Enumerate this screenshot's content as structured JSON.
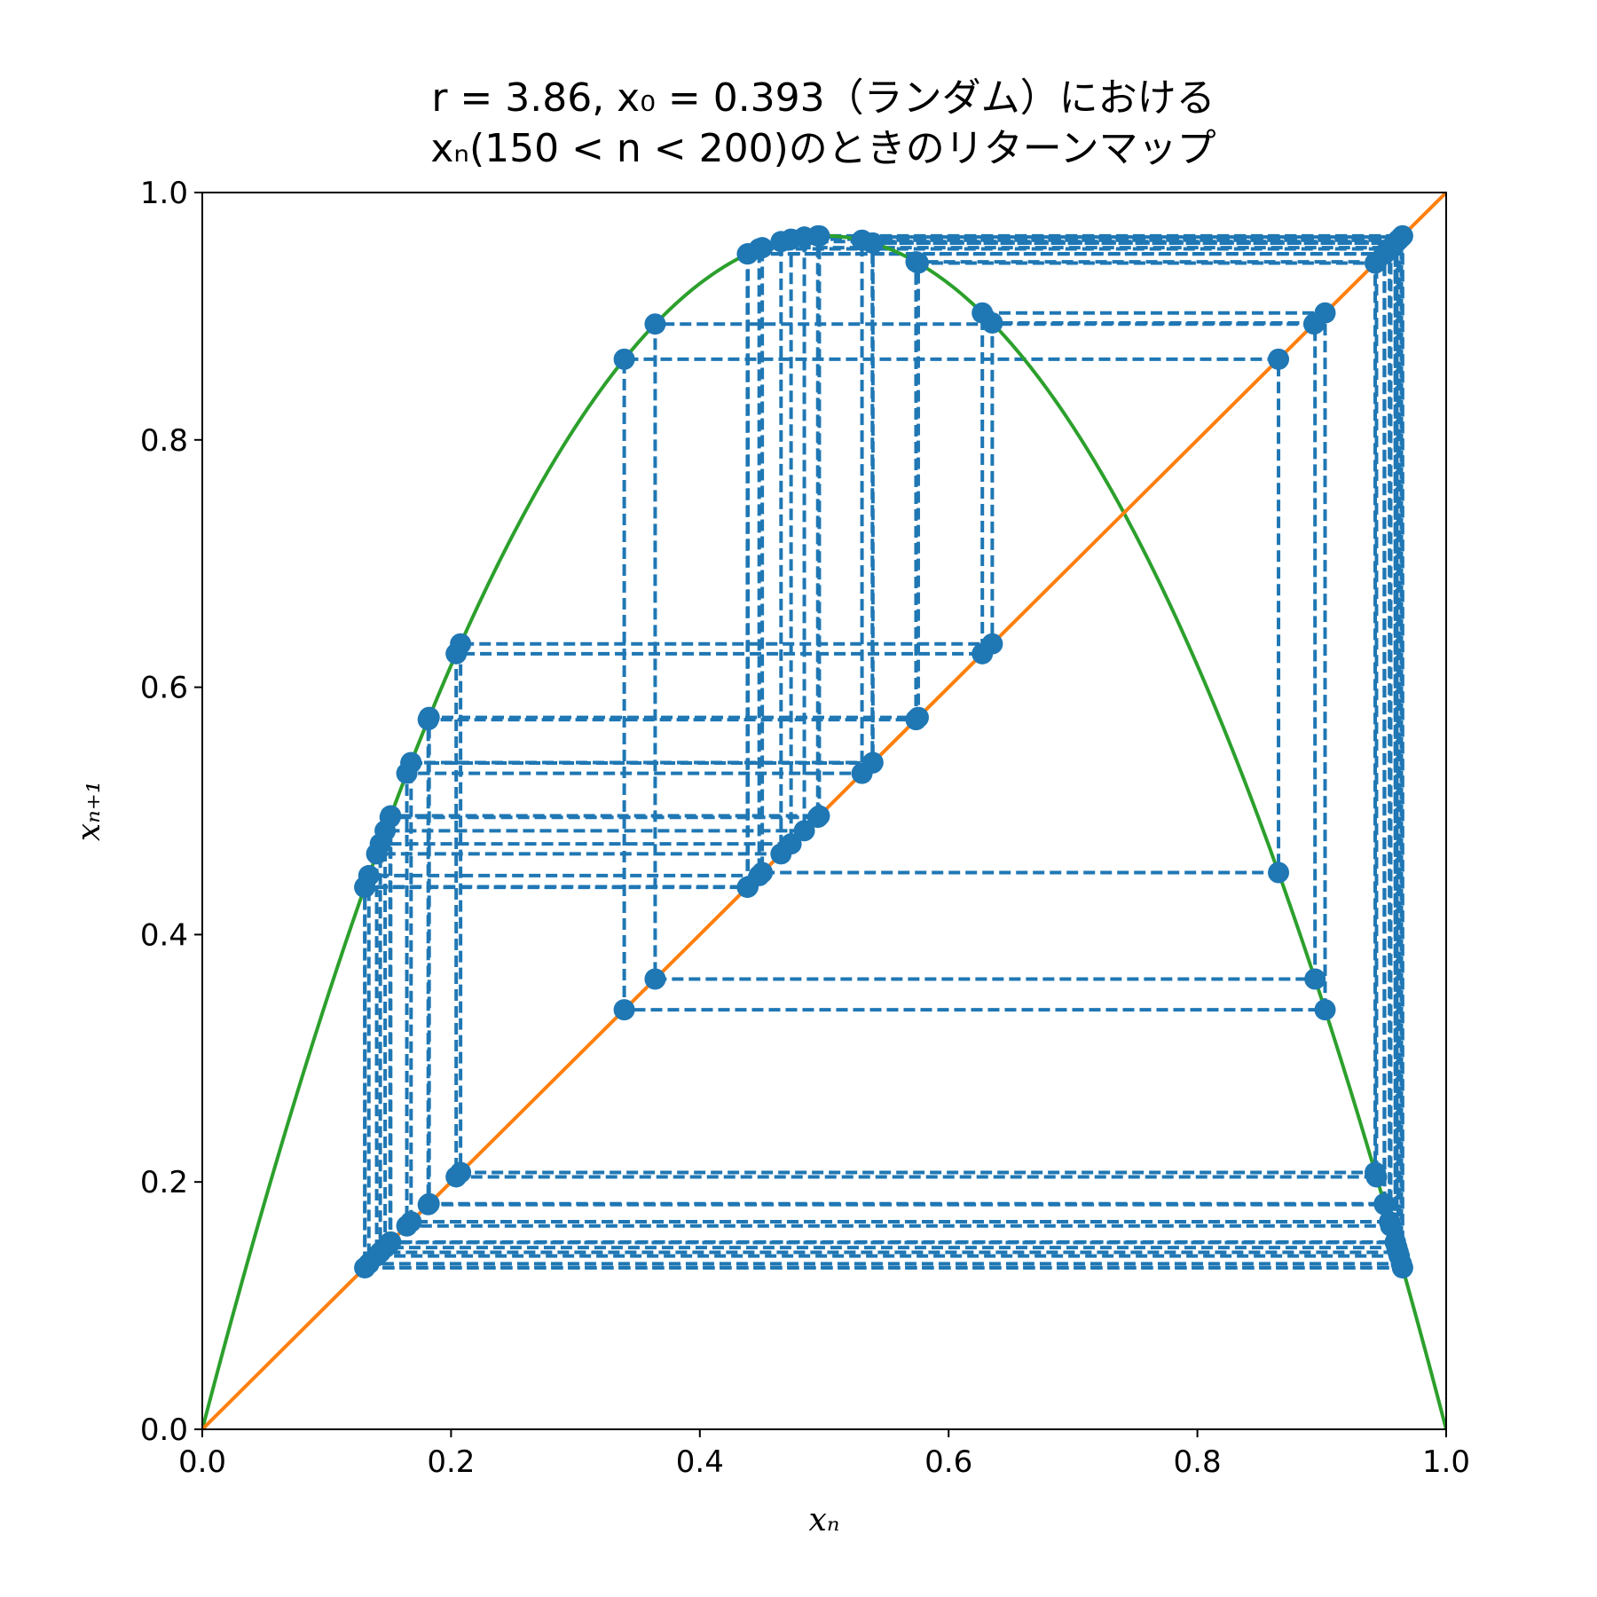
{
  "chart_data": {
    "type": "line",
    "title_lines": [
      "r = 3.86, x₀ = 0.393（ランダム）における",
      "xₙ(150 < n < 200)のときのリターンマップ"
    ],
    "xlabel": "xₙ",
    "ylabel": "xₙ₊₁",
    "xlim": [
      0,
      1
    ],
    "ylim": [
      0,
      1
    ],
    "xticks": [
      "0.0",
      "0.2",
      "0.4",
      "0.6",
      "0.8",
      "1.0"
    ],
    "yticks": [
      "0.0",
      "0.2",
      "0.4",
      "0.6",
      "0.8",
      "1.0"
    ],
    "grid": false,
    "legend": "none",
    "r": 3.86,
    "x0": 0.393,
    "n_start": 150,
    "n_end": 200,
    "series": [
      {
        "role": "logistic map curve f(x) = r x (1 - x)",
        "color": "#2ca02c"
      },
      {
        "role": "identity line y = x",
        "color": "#ff7f0e"
      },
      {
        "role": "cobweb iterates x_n (150 < n < 200)",
        "color": "#1f77b4",
        "style": "dashed with markers"
      }
    ]
  }
}
